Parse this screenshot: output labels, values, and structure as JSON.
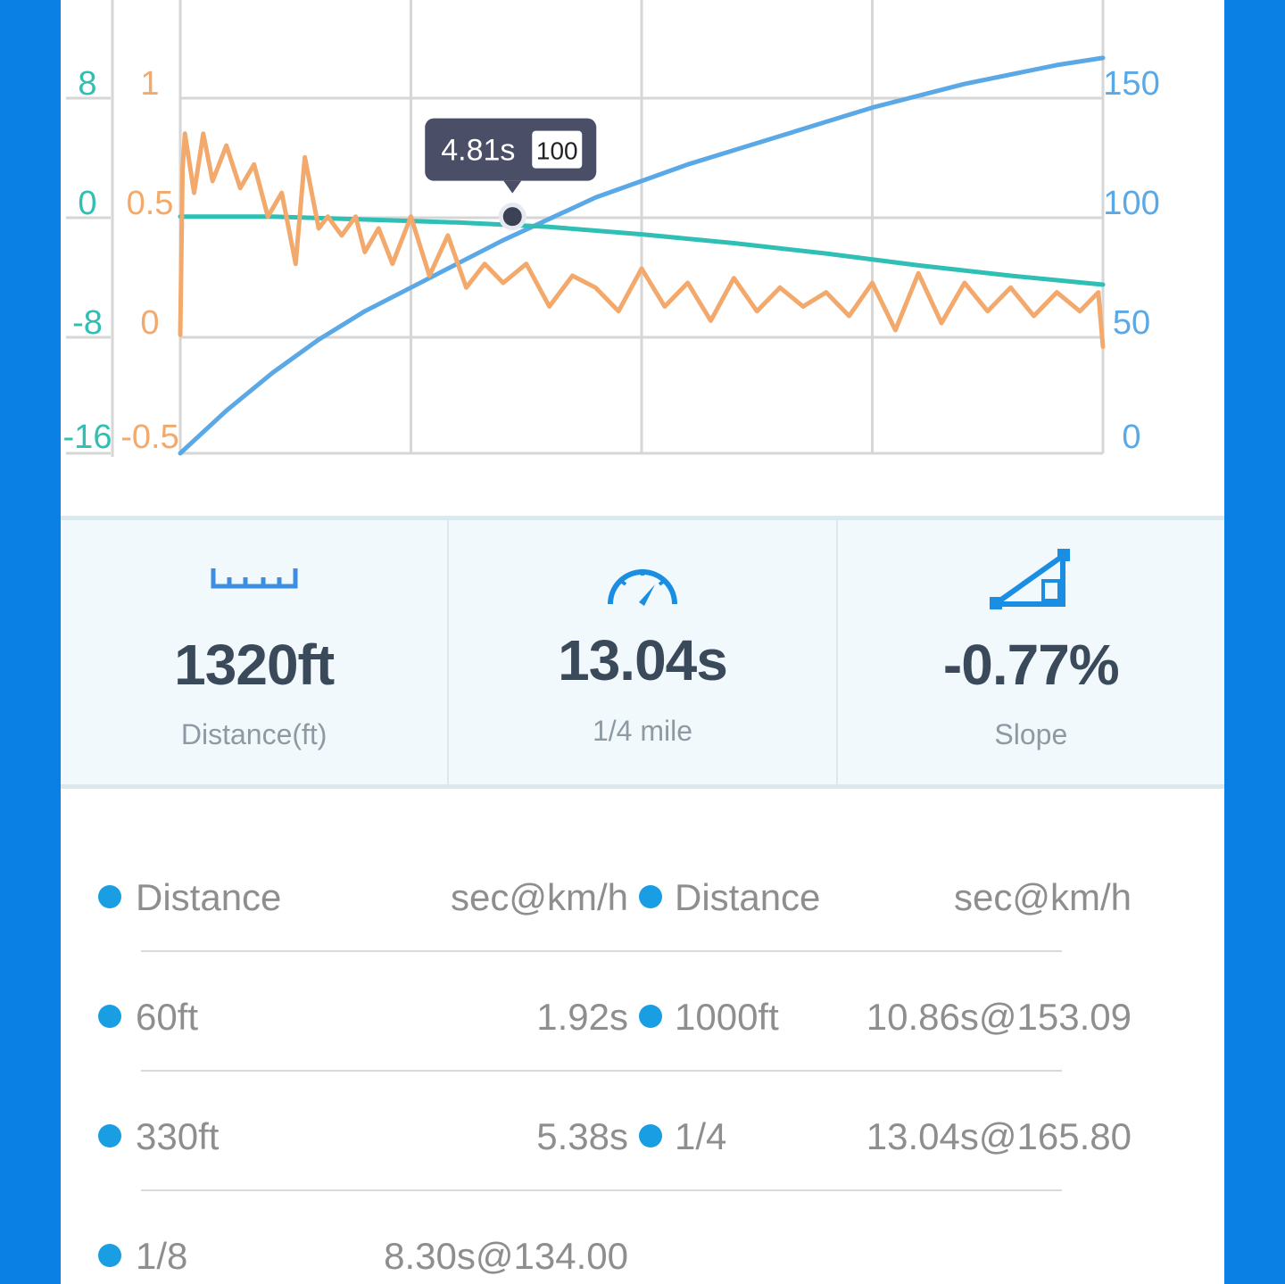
{
  "chart_data": {
    "type": "line",
    "x_range": [
      0,
      20
    ],
    "x_grid_count": 4,
    "grid": true,
    "y_axes": [
      {
        "side": "left-outer",
        "color": "#2fbfb4",
        "ticks": [
          "8",
          "0",
          "-8",
          "-16"
        ],
        "range": [
          -16,
          12
        ]
      },
      {
        "side": "left-inner",
        "color": "#f2a96b",
        "ticks": [
          "1",
          "0.5",
          "0",
          "-0.5"
        ],
        "range": [
          -0.5,
          1.25
        ]
      },
      {
        "side": "right",
        "color": "#5aa9e6",
        "ticks": [
          "150",
          "100",
          "50",
          "0"
        ],
        "range": [
          0,
          190
        ]
      }
    ],
    "series": [
      {
        "color": "#5aa9e6",
        "axis": 2,
        "x": [
          0,
          1,
          2,
          3,
          4,
          5,
          6,
          7,
          8,
          9,
          10,
          11,
          12,
          13,
          14,
          15,
          16,
          17,
          18,
          19,
          20
        ],
        "y": [
          0,
          18,
          34,
          48,
          60,
          70,
          80,
          90,
          99,
          108,
          115,
          122,
          128,
          134,
          140,
          146,
          151,
          156,
          160,
          164,
          167
        ]
      },
      {
        "color": "#2fbfb4",
        "axis": 0,
        "x": [
          0,
          2,
          4,
          6,
          8,
          10,
          12,
          14,
          16,
          18,
          20
        ],
        "y": [
          0,
          0,
          -0.2,
          -0.4,
          -0.7,
          -1.2,
          -1.8,
          -2.5,
          -3.3,
          -4.0,
          -4.6
        ]
      },
      {
        "color": "#f2a96b",
        "axis": 1,
        "x": [
          0,
          0.05,
          0.1,
          0.3,
          0.5,
          0.7,
          1.0,
          1.3,
          1.6,
          1.9,
          2.2,
          2.5,
          2.7,
          3.0,
          3.2,
          3.5,
          3.8,
          4.0,
          4.3,
          4.6,
          5.0,
          5.4,
          5.8,
          6.2,
          6.6,
          7.0,
          7.5,
          8.0,
          8.5,
          9.0,
          9.5,
          10.0,
          10.5,
          11.0,
          11.5,
          12.0,
          12.5,
          13.0,
          13.5,
          14.0,
          14.5,
          15.0,
          15.5,
          16.0,
          16.5,
          17.0,
          17.5,
          18.0,
          18.5,
          19.0,
          19.5,
          19.9,
          20
        ],
        "y": [
          0,
          0.7,
          0.85,
          0.6,
          0.85,
          0.65,
          0.8,
          0.62,
          0.72,
          0.5,
          0.6,
          0.3,
          0.75,
          0.45,
          0.5,
          0.42,
          0.5,
          0.35,
          0.45,
          0.3,
          0.5,
          0.25,
          0.42,
          0.2,
          0.3,
          0.22,
          0.3,
          0.12,
          0.25,
          0.2,
          0.1,
          0.28,
          0.12,
          0.22,
          0.06,
          0.24,
          0.1,
          0.2,
          0.12,
          0.18,
          0.08,
          0.22,
          0.02,
          0.26,
          0.05,
          0.22,
          0.1,
          0.2,
          0.08,
          0.18,
          0.1,
          0.18,
          -0.05
        ]
      }
    ],
    "tooltip": {
      "time": "4.81s",
      "badge": "100",
      "x": 7.2,
      "y": 100,
      "axis": 2
    }
  },
  "stats": [
    {
      "icon": "ruler-icon",
      "value": "1320ft",
      "label": "Distance(ft)"
    },
    {
      "icon": "speedometer-icon",
      "value": "13.04s",
      "label": "1/4 mile"
    },
    {
      "icon": "slope-icon",
      "value": "-0.77%",
      "label": "Slope"
    }
  ],
  "table": {
    "header": {
      "left_name": "Distance",
      "left_val": "sec@km/h",
      "right_name": "Distance",
      "right_val": "sec@km/h"
    },
    "rows": [
      {
        "left_name": "60ft",
        "left_val": "1.92s",
        "right_name": "1000ft",
        "right_val": "10.86s@153.09"
      },
      {
        "left_name": "330ft",
        "left_val": "5.38s",
        "right_name": "1/4",
        "right_val": "13.04s@165.80"
      },
      {
        "left_name": "1/8",
        "left_val": "8.30s@134.00",
        "right_name": "",
        "right_val": ""
      }
    ]
  },
  "colors": {
    "accent": "#1a9ee3",
    "frame": "#0a80e4"
  }
}
